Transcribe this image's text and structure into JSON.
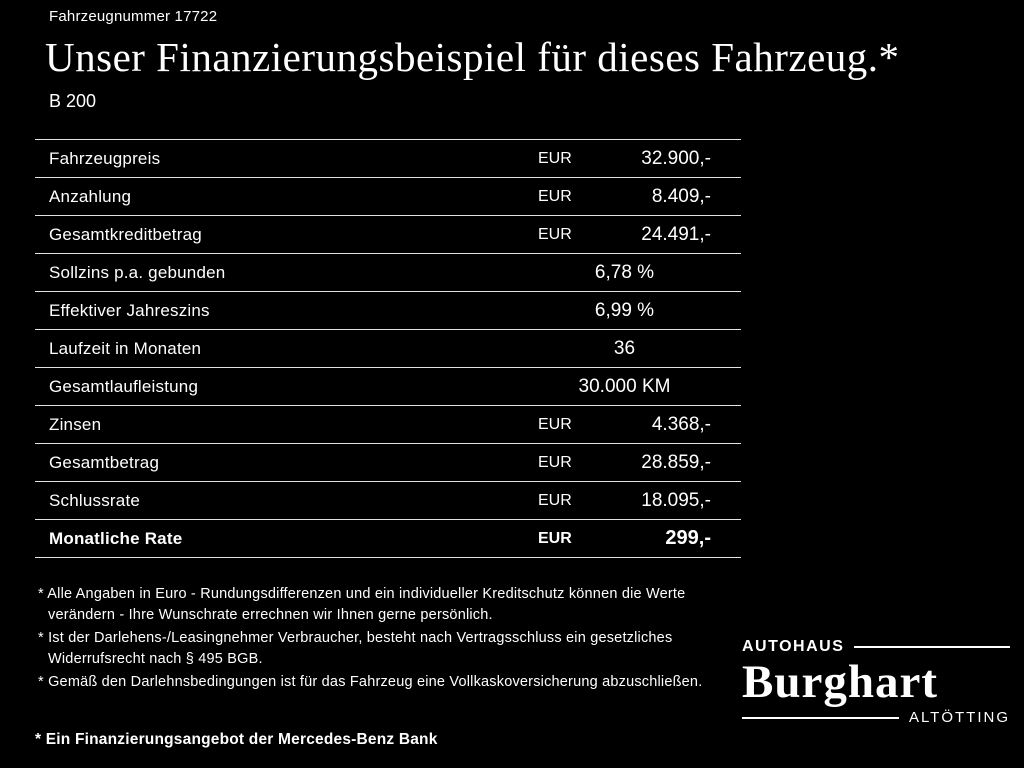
{
  "header": {
    "vehicle_number": "Fahrzeugnummer 17722",
    "title": "Unser Finanzierungsbeispiel für dieses Fahrzeug.*",
    "model": "B 200"
  },
  "table": {
    "rows": [
      {
        "label": "Fahrzeugpreis",
        "currency": "EUR",
        "value": "32.900,-"
      },
      {
        "label": "Anzahlung",
        "currency": "EUR",
        "value": "8.409,-"
      },
      {
        "label": "Gesamtkreditbetrag",
        "currency": "EUR",
        "value": "24.491,-"
      },
      {
        "label": "Sollzins p.a. gebunden",
        "currency": "",
        "value": "6,78 %"
      },
      {
        "label": "Effektiver Jahreszins",
        "currency": "",
        "value": "6,99 %"
      },
      {
        "label": "Laufzeit in Monaten",
        "currency": "",
        "value": "36"
      },
      {
        "label": "Gesamtlaufleistung",
        "currency": "",
        "value": "30.000 KM"
      },
      {
        "label": "Zinsen",
        "currency": "EUR",
        "value": "4.368,-"
      },
      {
        "label": "Gesamtbetrag",
        "currency": "EUR",
        "value": "28.859,-"
      },
      {
        "label": "Schlussrate",
        "currency": "EUR",
        "value": "18.095,-"
      },
      {
        "label": "Monatliche Rate",
        "currency": "EUR",
        "value": "299,-"
      }
    ]
  },
  "footnotes": [
    "* Alle Angaben in Euro - Rundungsdifferenzen und ein individueller Kreditschutz können die Werte verändern - Ihre Wunschrate errechnen wir Ihnen gerne persönlich.",
    "* Ist der Darlehens-/Leasingnehmer Verbraucher, besteht nach Vertragsschluss ein gesetzliches Widerrufsrecht nach § 495 BGB.",
    "* Gemäß den Darlehnsbedingungen ist für das Fahrzeug eine Vollkaskoversicherung abzuschließen."
  ],
  "financing_note": "* Ein Finanzierungsangebot der Mercedes-Benz Bank",
  "dealer": {
    "top": "AUTOHAUS",
    "name": "Burghart",
    "bottom": "ALTÖTTING"
  },
  "colors": {
    "background": "#000000",
    "text": "#ffffff",
    "line": "#e2e2e2"
  }
}
